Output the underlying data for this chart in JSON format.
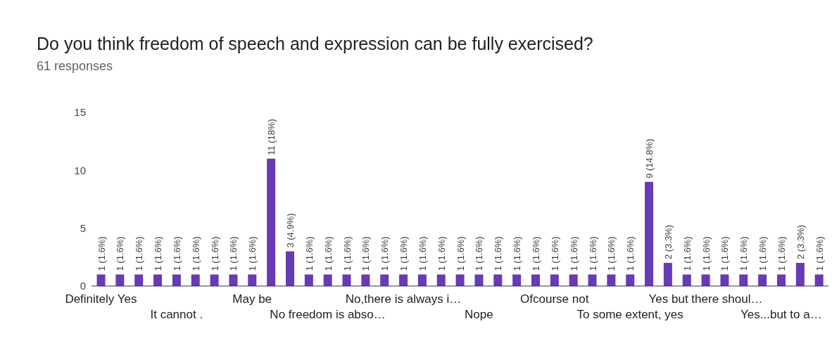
{
  "chart_data": {
    "type": "bar",
    "title": "Do you think freedom of speech and expression can be fully exercised?",
    "subtitle": "61 responses",
    "categories": [
      "Definitely Yes",
      null,
      null,
      null,
      "It cannot .",
      null,
      null,
      null,
      "May be",
      null,
      null,
      null,
      "No freedom is abso…",
      null,
      null,
      null,
      "No,there is always i…",
      null,
      null,
      null,
      "Nope",
      null,
      null,
      null,
      "Ofcourse not",
      null,
      null,
      null,
      "To some extent, yes",
      null,
      null,
      null,
      "Yes but there shoul…",
      null,
      null,
      null,
      "Yes...but to a…",
      null,
      null
    ],
    "values": [
      1,
      1,
      1,
      1,
      1,
      1,
      1,
      1,
      1,
      11,
      3,
      1,
      1,
      1,
      1,
      1,
      1,
      1,
      1,
      1,
      1,
      1,
      1,
      1,
      1,
      1,
      1,
      1,
      1,
      9,
      2,
      1,
      1,
      1,
      1,
      1,
      1,
      2,
      1
    ],
    "value_labels": [
      "1 (1.6%)",
      "1 (1.6%)",
      "1 (1.6%)",
      "1 (1.6%)",
      "1 (1.6%)",
      "1 (1.6%)",
      "1 (1.6%)",
      "1 (1.6%)",
      "1 (1.6%)",
      "11 (18%)",
      "3 (4.9%)",
      "1 (1.6%)",
      "1 (1.6%)",
      "1 (1.6%)",
      "1 (1.6%)",
      "1 (1.6%)",
      "1 (1.6%)",
      "1 (1.6%)",
      "1 (1.6%)",
      "1 (1.6%)",
      "1 (1.6%)",
      "1 (1.6%)",
      "1 (1.6%)",
      "1 (1.6%)",
      "1 (1.6%)",
      "1 (1.6%)",
      "1 (1.6%)",
      "1 (1.6%)",
      "1 (1.6%)",
      "9 (14.8%)",
      "2 (3.3%)",
      "1 (1.6%)",
      "1 (1.6%)",
      "1 (1.6%)",
      "1 (1.6%)",
      "1 (1.6%)",
      "1 (1.6%)",
      "2 (3.3%)",
      "1 (1.6%)"
    ],
    "color": "#673ab7",
    "ylim": [
      0,
      15
    ],
    "yticks": [
      0,
      5,
      10,
      15
    ],
    "grid": false
  }
}
